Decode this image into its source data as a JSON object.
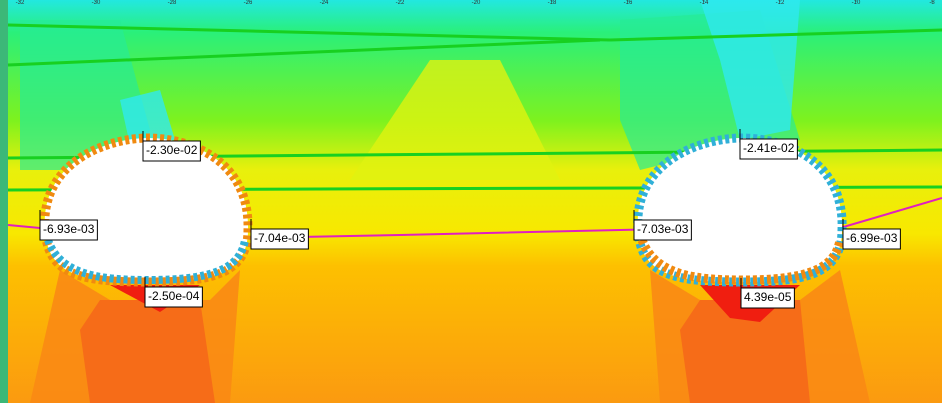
{
  "ruler": {
    "ticks": [
      -32,
      -30,
      -28,
      -26,
      -24,
      -22,
      -20,
      -18,
      -16,
      -14,
      -12,
      -10,
      -8
    ]
  },
  "labels": [
    "-2.30e-02",
    "-6.93e-03",
    "-7.04e-03",
    "-2.50e-04",
    "-2.41e-02",
    "-7.03e-03",
    "-6.99e-03",
    "4.39e-05"
  ]
}
